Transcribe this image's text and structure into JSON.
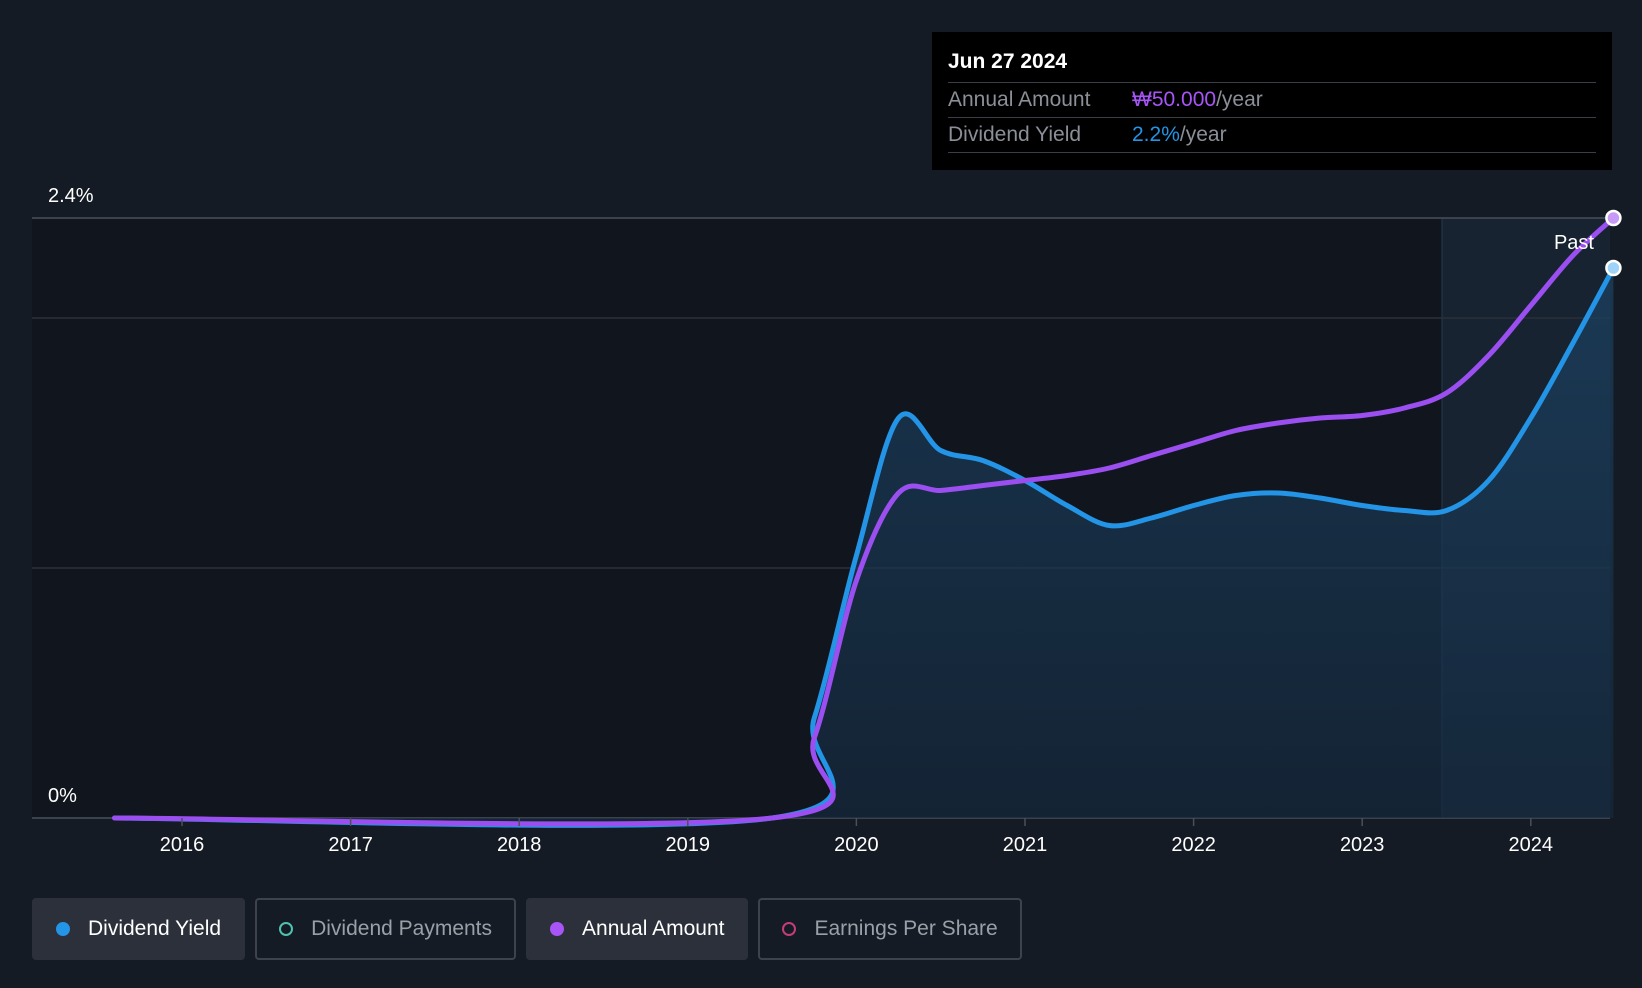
{
  "chart_data": {
    "type": "line",
    "y_ticks": [
      "2.4%",
      "0%"
    ],
    "ylim": [
      0,
      2.4
    ],
    "x_ticks": [
      "2016",
      "2017",
      "2018",
      "2019",
      "2020",
      "2021",
      "2022",
      "2023",
      "2024"
    ],
    "past_label": "Past",
    "grid": true,
    "series": [
      {
        "name": "Dividend Yield",
        "color": "#2394e6",
        "x": [
          2015.6,
          2019.5,
          2019.75,
          2020.0,
          2020.25,
          2020.5,
          2020.75,
          2021.0,
          2021.25,
          2021.5,
          2021.75,
          2022.0,
          2022.25,
          2022.5,
          2022.75,
          2023.0,
          2023.25,
          2023.5,
          2023.75,
          2024.0,
          2024.25,
          2024.49
        ],
        "values": [
          0,
          0,
          0.4,
          1.05,
          1.6,
          1.47,
          1.43,
          1.35,
          1.25,
          1.17,
          1.2,
          1.25,
          1.29,
          1.3,
          1.28,
          1.25,
          1.23,
          1.23,
          1.35,
          1.6,
          1.9,
          2.2
        ]
      },
      {
        "name": "Annual Amount",
        "color": "#9b4ff0",
        "x": [
          2015.6,
          2019.5,
          2019.75,
          2020.0,
          2020.25,
          2020.5,
          2020.75,
          2021.0,
          2021.25,
          2021.5,
          2021.75,
          2022.0,
          2022.25,
          2022.5,
          2022.75,
          2023.0,
          2023.25,
          2023.5,
          2023.75,
          2024.0,
          2024.25,
          2024.49
        ],
        "values": [
          0,
          0,
          0.32,
          0.95,
          1.3,
          1.31,
          1.33,
          1.35,
          1.37,
          1.4,
          1.45,
          1.5,
          1.55,
          1.58,
          1.6,
          1.61,
          1.64,
          1.7,
          1.85,
          2.05,
          2.25,
          2.4
        ]
      }
    ]
  },
  "tooltip": {
    "date": "Jun 27 2024",
    "rows": [
      {
        "label": "Annual Amount",
        "value": "₩50.000",
        "unit": "/year",
        "color": "#a855f7"
      },
      {
        "label": "Dividend Yield",
        "value": "2.2%",
        "unit": "/year",
        "color": "#2394e6"
      }
    ]
  },
  "legend": [
    {
      "label": "Dividend Yield",
      "color": "#2394e6",
      "active": true
    },
    {
      "label": "Dividend Payments",
      "color": "#4fc1b0",
      "active": false
    },
    {
      "label": "Annual Amount",
      "color": "#a855f7",
      "active": true
    },
    {
      "label": "Earnings Per Share",
      "color": "#c43c7a",
      "active": false
    }
  ]
}
